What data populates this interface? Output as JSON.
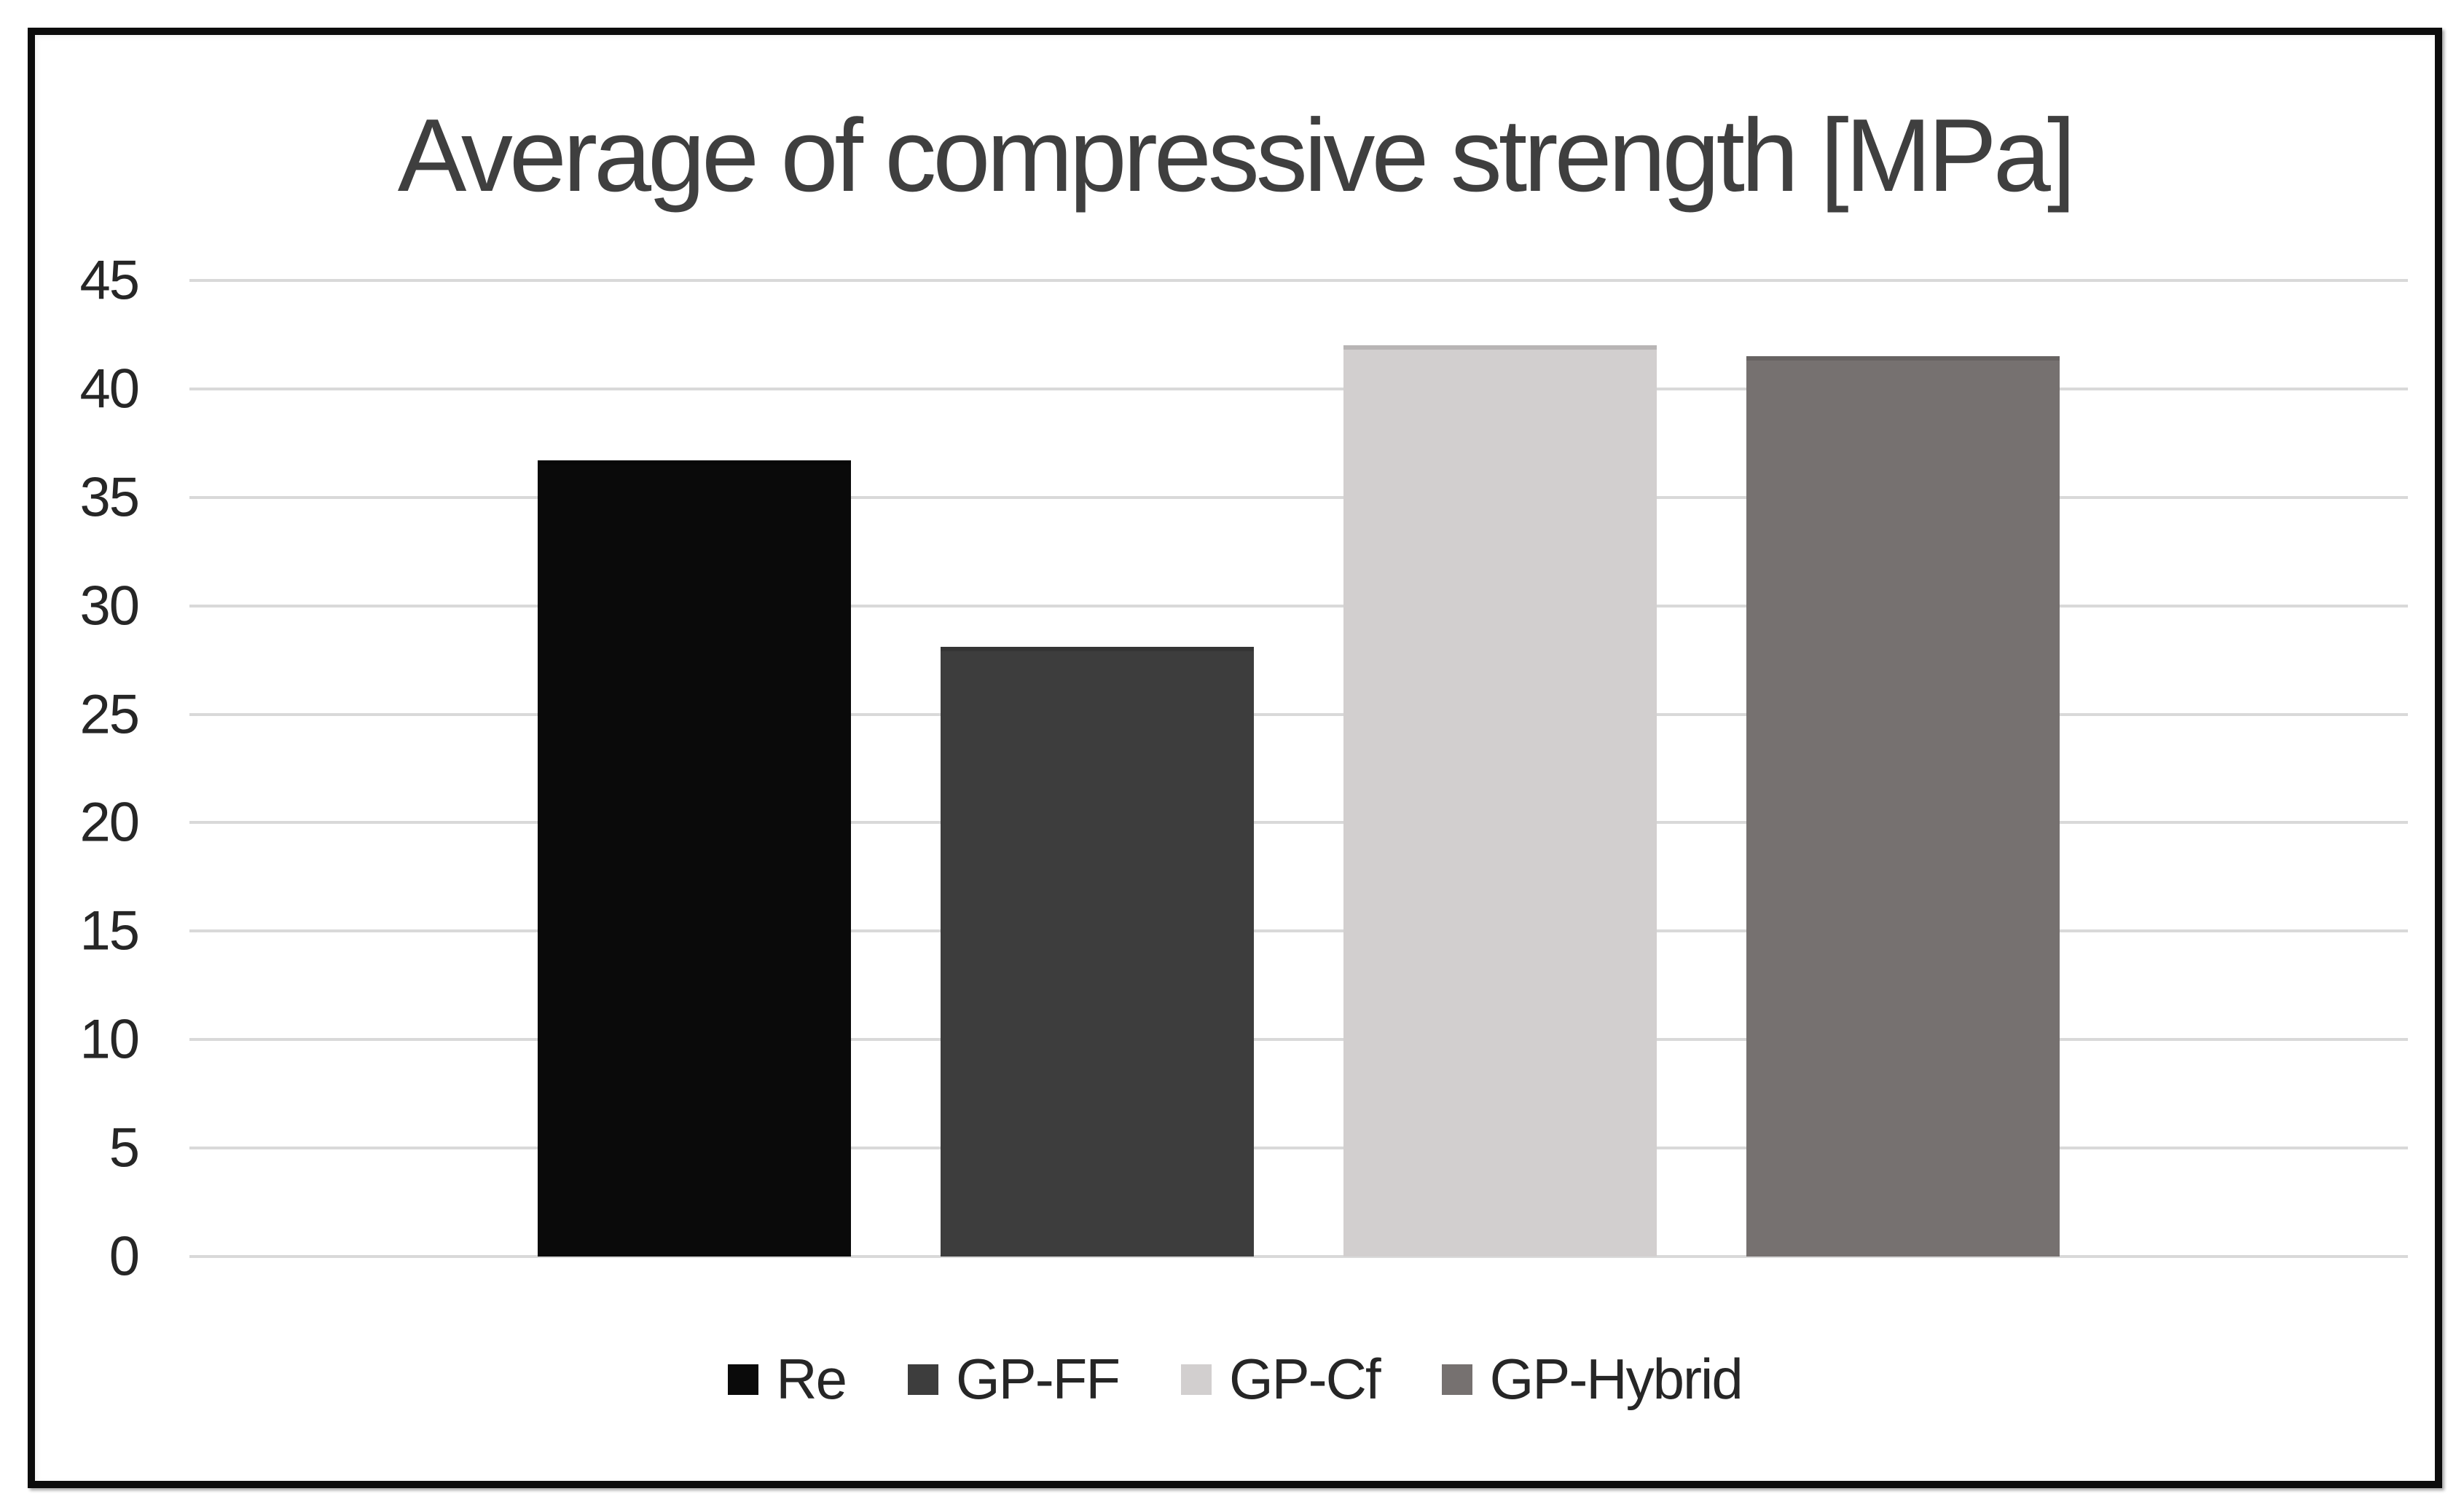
{
  "chart_data": {
    "type": "bar",
    "title": "Average of compressive strength [MPa]",
    "categories": [
      "Re",
      "GP-FF",
      "GP-Cf",
      "GP-Hybrid"
    ],
    "series": [
      {
        "name": "Re",
        "value": 36.7,
        "color": "#0a0a0a"
      },
      {
        "name": "GP-FF",
        "value": 28.1,
        "color": "#3d3d3d"
      },
      {
        "name": "GP-Cf",
        "value": 42.0,
        "color": "#d2cfcf"
      },
      {
        "name": "GP-Hybrid",
        "value": 41.5,
        "color": "#767170"
      }
    ],
    "xlabel": "",
    "ylabel": "",
    "ylim": [
      0,
      45
    ],
    "yticks": [
      45,
      40,
      35,
      30,
      25,
      20,
      15,
      10,
      5,
      0
    ],
    "grid": true,
    "legend_position": "bottom",
    "gridline_color": "#d9d9d9",
    "title_color": "#3f3f3f",
    "axis_label_color": "#262626",
    "frame_border_color": "#0c0c0c"
  }
}
